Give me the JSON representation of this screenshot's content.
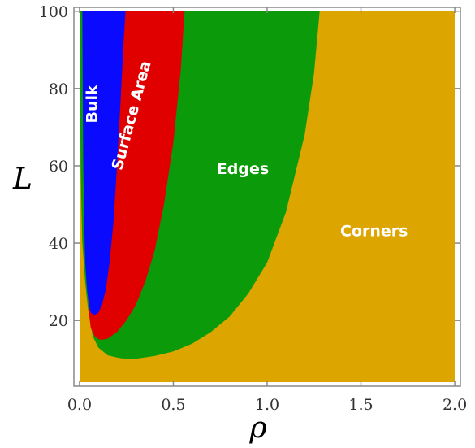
{
  "chart_data": {
    "type": "area",
    "xlabel": "ρ",
    "ylabel": "L",
    "xlim": [
      -0.03,
      2.03
    ],
    "ylim": [
      3,
      101
    ],
    "xticks": [
      "0.0",
      "0.5",
      "1.0",
      "1.5",
      "2.0"
    ],
    "xtick_values": [
      0,
      0.5,
      1.0,
      1.5,
      2.0
    ],
    "yticks": [
      "20",
      "40",
      "60",
      "80",
      "100"
    ],
    "ytick_values": [
      20,
      40,
      60,
      80,
      100
    ],
    "grid": false,
    "background_region": {
      "name": "Corners",
      "color": "#DCA500",
      "label_at": [
        1.57,
        43
      ]
    },
    "regions": [
      {
        "name": "Edges",
        "color": "#0A9A0A",
        "label_at": [
          0.87,
          59
        ],
        "boundary": [
          [
            0.0008,
            100
          ],
          [
            0.003,
            80
          ],
          [
            0.006,
            60
          ],
          [
            0.01,
            50
          ],
          [
            0.015,
            40
          ],
          [
            0.03,
            30
          ],
          [
            0.045,
            23
          ],
          [
            0.07,
            16
          ],
          [
            0.1,
            13
          ],
          [
            0.15,
            11
          ],
          [
            0.2,
            10.4
          ],
          [
            0.25,
            10
          ],
          [
            0.3,
            10.1
          ],
          [
            0.4,
            10.8
          ],
          [
            0.5,
            12
          ],
          [
            0.6,
            14
          ],
          [
            0.7,
            17
          ],
          [
            0.8,
            21
          ],
          [
            0.9,
            27
          ],
          [
            1.0,
            35
          ],
          [
            1.1,
            48
          ],
          [
            1.2,
            68
          ],
          [
            1.25,
            84
          ],
          [
            1.28,
            100
          ]
        ]
      },
      {
        "name": "Surface Area",
        "color": "#E00000",
        "label_at": [
          0.28,
          73
        ],
        "boundary": [
          [
            0.015,
            100
          ],
          [
            0.02,
            80
          ],
          [
            0.025,
            60
          ],
          [
            0.03,
            45
          ],
          [
            0.04,
            30
          ],
          [
            0.05,
            22
          ],
          [
            0.06,
            18
          ],
          [
            0.08,
            16
          ],
          [
            0.1,
            15.2
          ],
          [
            0.12,
            15
          ],
          [
            0.15,
            15.3
          ],
          [
            0.2,
            17
          ],
          [
            0.25,
            20
          ],
          [
            0.3,
            24
          ],
          [
            0.35,
            30
          ],
          [
            0.4,
            38
          ],
          [
            0.45,
            50
          ],
          [
            0.5,
            66
          ],
          [
            0.54,
            85
          ],
          [
            0.56,
            100
          ]
        ]
      },
      {
        "name": "Bulk",
        "color": "#0A0AFF",
        "label_at": [
          0.07,
          76
        ],
        "boundary": [
          [
            0.015,
            100
          ],
          [
            0.017,
            80
          ],
          [
            0.02,
            60
          ],
          [
            0.025,
            45
          ],
          [
            0.03,
            35
          ],
          [
            0.04,
            28
          ],
          [
            0.05,
            24
          ],
          [
            0.06,
            22
          ],
          [
            0.08,
            21.4
          ],
          [
            0.1,
            22
          ],
          [
            0.12,
            24
          ],
          [
            0.14,
            28
          ],
          [
            0.16,
            35
          ],
          [
            0.18,
            45
          ],
          [
            0.2,
            60
          ],
          [
            0.22,
            78
          ],
          [
            0.235,
            92
          ],
          [
            0.245,
            100
          ]
        ]
      }
    ]
  }
}
